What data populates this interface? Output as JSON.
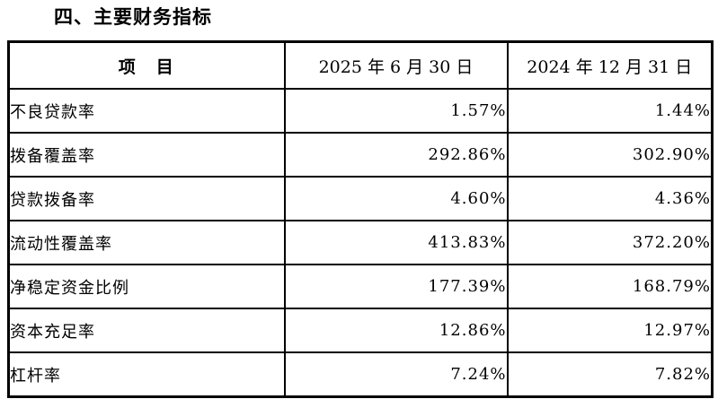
{
  "page": {
    "title": "四、主要财务指标"
  },
  "table": {
    "headers": {
      "item": "项　目",
      "col2025": "2025 年 6 月 30 日",
      "col2024": "2024 年 12 月 31 日"
    },
    "rows": [
      {
        "item": "不良贷款率",
        "v2025": "1.57%",
        "v2024": "1.44%"
      },
      {
        "item": "拨备覆盖率",
        "v2025": "292.86%",
        "v2024": "302.90%"
      },
      {
        "item": "贷款拨备率",
        "v2025": "4.60%",
        "v2024": "4.36%"
      },
      {
        "item": "流动性覆盖率",
        "v2025": "413.83%",
        "v2024": "372.20%"
      },
      {
        "item": "净稳定资金比例",
        "v2025": "177.39%",
        "v2024": "168.79%"
      },
      {
        "item": "资本充足率",
        "v2025": "12.86%",
        "v2024": "12.97%"
      },
      {
        "item": "杠杆率",
        "v2025": "7.24%",
        "v2024": "7.82%"
      }
    ]
  },
  "colors": {
    "border": "#000000",
    "text": "#000000",
    "background": "#ffffff"
  }
}
